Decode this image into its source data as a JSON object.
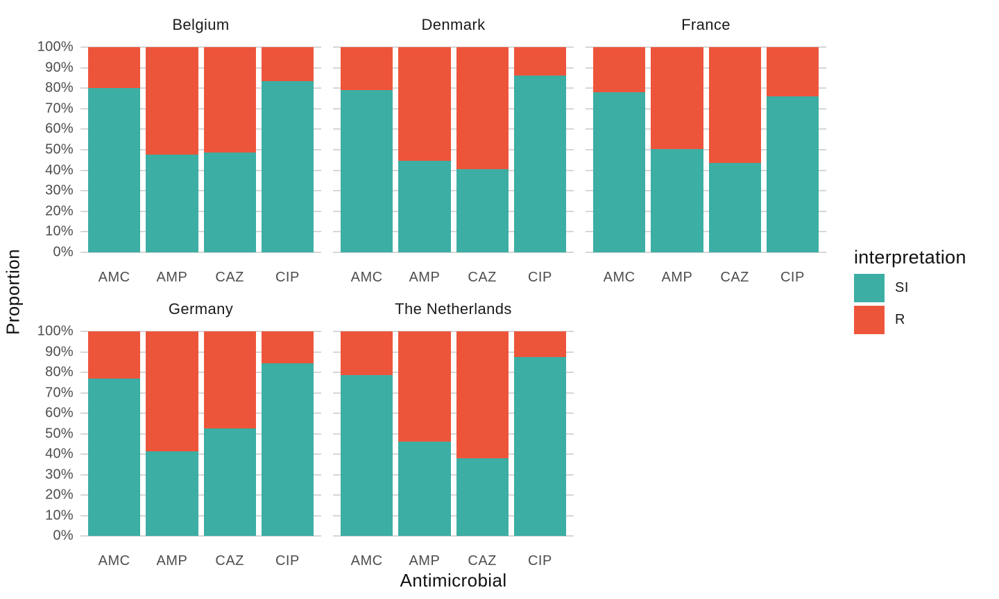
{
  "chart_data": {
    "type": "bar",
    "subtype": "stacked-percent-faceted",
    "title": "",
    "x_axis_title": "Antimicrobial",
    "y_axis_title": "Proportion",
    "categories": [
      "AMC",
      "AMP",
      "CAZ",
      "CIP"
    ],
    "y_ticks": [
      "100%",
      "90%",
      "80%",
      "70%",
      "60%",
      "50%",
      "40%",
      "30%",
      "20%",
      "10%",
      "0%"
    ],
    "ylim": [
      0,
      100
    ],
    "grid": true,
    "legend_position": "right",
    "series_order": [
      "R",
      "SI"
    ],
    "series_colors": {
      "SI": "#3CAEA3",
      "R": "#ED553B"
    },
    "facets": [
      {
        "title": "Belgium",
        "row": 0,
        "col": 0,
        "series": [
          {
            "name": "SI",
            "values": [
              80,
              47.5,
              48.5,
              83.5
            ]
          },
          {
            "name": "R",
            "values": [
              20,
              52.5,
              51.5,
              16.5
            ]
          }
        ]
      },
      {
        "title": "Denmark",
        "row": 0,
        "col": 1,
        "series": [
          {
            "name": "SI",
            "values": [
              79,
              44.5,
              40.5,
              86
            ]
          },
          {
            "name": "R",
            "values": [
              21,
              55.5,
              59.5,
              14
            ]
          }
        ]
      },
      {
        "title": "France",
        "row": 0,
        "col": 2,
        "series": [
          {
            "name": "SI",
            "values": [
              78,
              50.5,
              43.5,
              76
            ]
          },
          {
            "name": "R",
            "values": [
              22,
              49.5,
              56.5,
              24
            ]
          }
        ]
      },
      {
        "title": "Germany",
        "row": 1,
        "col": 0,
        "series": [
          {
            "name": "SI",
            "values": [
              77,
              41.5,
              52.5,
              84.5
            ]
          },
          {
            "name": "R",
            "values": [
              23,
              58.5,
              47.5,
              15.5
            ]
          }
        ]
      },
      {
        "title": "The Netherlands",
        "row": 1,
        "col": 1,
        "series": [
          {
            "name": "SI",
            "values": [
              78.5,
              46,
              38,
              87.5
            ]
          },
          {
            "name": "R",
            "values": [
              21.5,
              54,
              62,
              12.5
            ]
          }
        ]
      }
    ]
  },
  "axes": {
    "x_title": "Antimicrobial",
    "y_title": "Proportion"
  },
  "legend": {
    "title": "interpretation",
    "items": [
      {
        "label": "SI",
        "color": "#3CAEA3"
      },
      {
        "label": "R",
        "color": "#ED553B"
      }
    ]
  },
  "colors": {
    "background": "#FFFFFF",
    "grid": "#D6D6D6",
    "tick_text": "#4D4D4D",
    "title_text": "#111111"
  }
}
